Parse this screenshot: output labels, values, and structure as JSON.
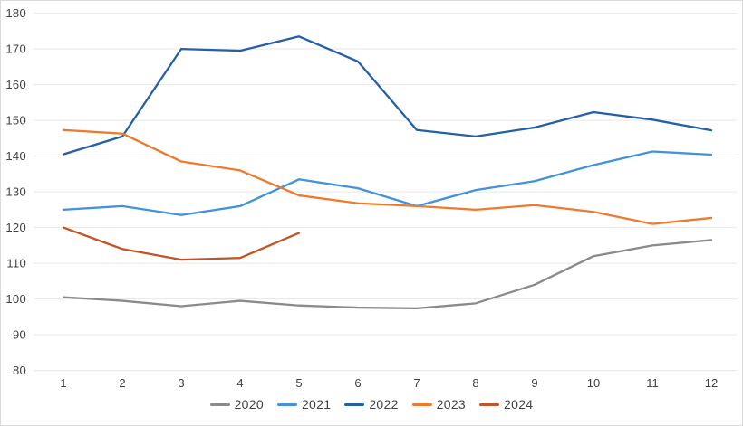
{
  "chart_data": {
    "type": "line",
    "title": "",
    "xlabel": "",
    "ylabel": "",
    "x_labels": [
      "1",
      "2",
      "3",
      "4",
      "5",
      "6",
      "7",
      "8",
      "9",
      "10",
      "11",
      "12"
    ],
    "y_ticks": [
      "180",
      "170",
      "160",
      "150",
      "140",
      "130",
      "120",
      "110",
      "100",
      "90",
      "80"
    ],
    "ylim": [
      80,
      180
    ],
    "grid": "horizontal-only",
    "legend_position": "bottom",
    "series": [
      {
        "name": "2020",
        "color": "#8A8A8A",
        "values": [
          100.5,
          99.5,
          98,
          99.5,
          98.2,
          97.6,
          97.4,
          98.8,
          104,
          112,
          115,
          116.5
        ]
      },
      {
        "name": "2021",
        "color": "#4293DC",
        "values": [
          125,
          126,
          123.5,
          126,
          133.5,
          131,
          126,
          130.5,
          133,
          137.5,
          141.3,
          140.4
        ]
      },
      {
        "name": "2022",
        "color": "#2460A7",
        "values": [
          140.5,
          145.5,
          170,
          169.5,
          173.5,
          166.5,
          147.3,
          145.5,
          148,
          152.3,
          150.2,
          147.2
        ]
      },
      {
        "name": "2023",
        "color": "#ED7A2E",
        "values": [
          147.3,
          146.3,
          138.5,
          136,
          129,
          126.8,
          126,
          125,
          126.3,
          124.4,
          121,
          122.7
        ]
      },
      {
        "name": "2024",
        "color": "#C35425",
        "values": [
          120,
          114,
          111,
          111.5,
          118.5
        ]
      }
    ]
  },
  "colors": {
    "background": "#FFFFFF",
    "border": "#D9D9D9",
    "gridline": "#E7E7E7",
    "axis_text": "#404040"
  }
}
